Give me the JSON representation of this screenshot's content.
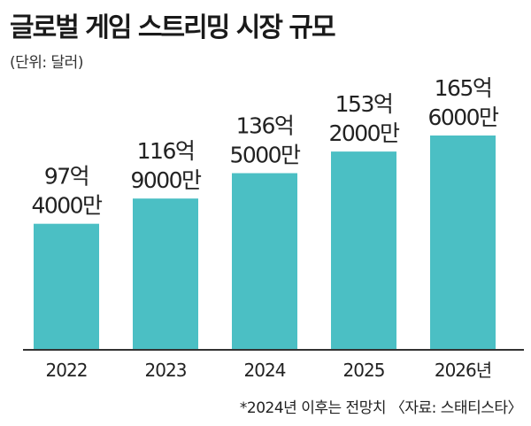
{
  "title": "글로벌 게임 스트리밍 시장 규모",
  "unit_note": "(단위: 달러)",
  "footnote": "*2024년 이후는 전망치 〈자료: 스태티스타〉",
  "colors": {
    "bar": "#4bbfc4",
    "baseline": "#333333",
    "text": "#222222"
  },
  "chart_data": {
    "type": "bar",
    "title": "글로벌 게임 스트리밍 시장 규모",
    "categories": [
      "2022",
      "2023",
      "2024",
      "2025",
      "2026년"
    ],
    "values": [
      9740000000,
      11690000000,
      13650000000,
      15320000000,
      16560000000
    ],
    "data_labels": [
      [
        "97억",
        "4000만"
      ],
      [
        "116억",
        "9000만"
      ],
      [
        "136억",
        "5000만"
      ],
      [
        "153억",
        "2000만"
      ],
      [
        "165억",
        "6000만"
      ]
    ],
    "xlabel": "",
    "ylabel": "",
    "grid": false,
    "legend": "none"
  }
}
